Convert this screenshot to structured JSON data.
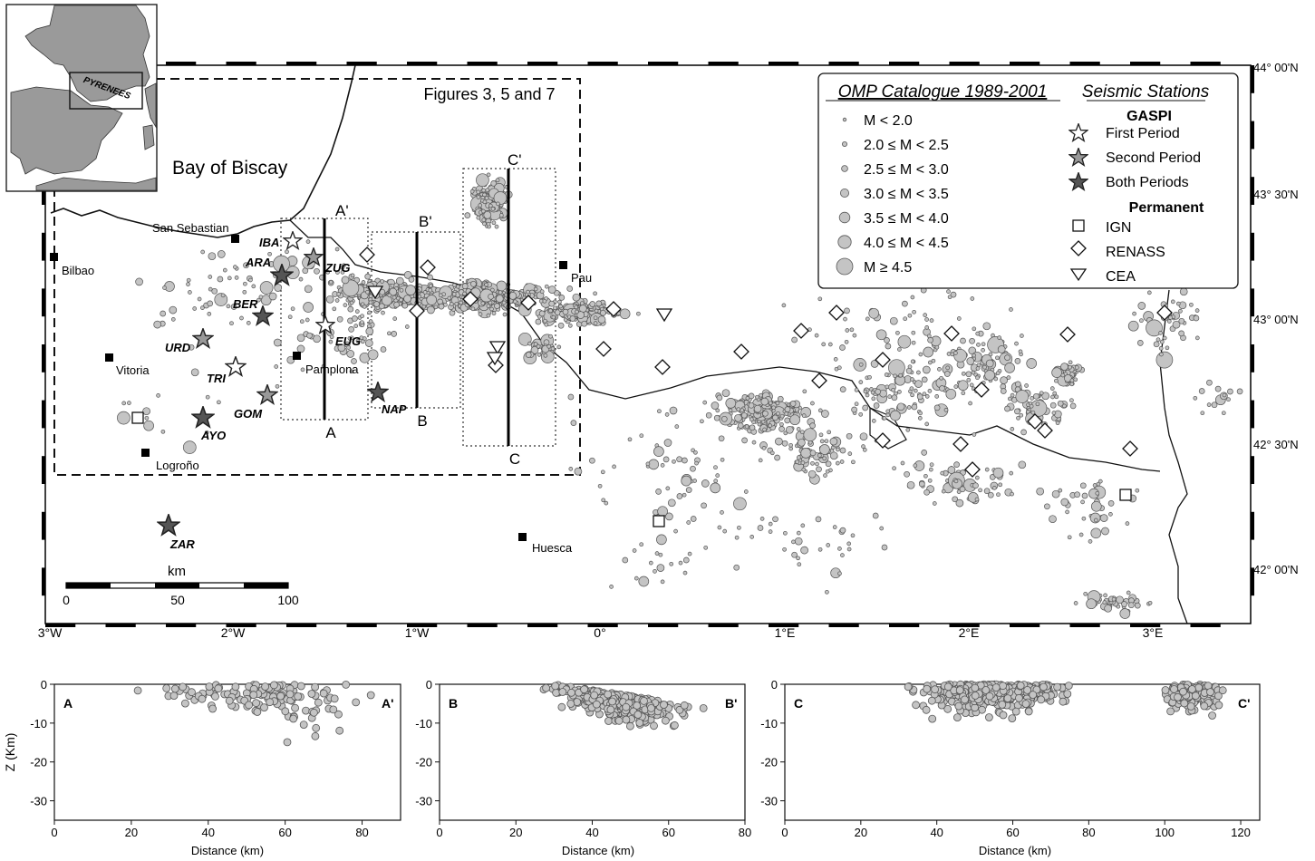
{
  "colors": {
    "event_fill": "#c4c4c4",
    "event_stroke": "#555555",
    "land": "#9a9a9a",
    "sea": "#ffffff",
    "star_dark": "#555555",
    "star_mid": "#999999"
  },
  "map": {
    "lon_labels": [
      "3°W",
      "2°W",
      "1°W",
      "0°",
      "1°E",
      "2°E",
      "3°E"
    ],
    "lat_labels": [
      "44° 00'N",
      "43° 30'N",
      "43° 00'N",
      "42° 30'N",
      "42° 00'N"
    ],
    "inset_label": "PYRENEES",
    "sea_label": "Bay of Biscay",
    "figures_box_label": "Figures 3, 5 and 7",
    "cities": [
      "San Sebastian",
      "Bilbao",
      "Vitoria",
      "Pamplona",
      "Logroño",
      "Pau",
      "Huesca"
    ],
    "profiles": {
      "A": "A",
      "A_prime": "A'",
      "B": "B",
      "B_prime": "B'",
      "C": "C",
      "C_prime": "C'"
    },
    "scale_bar": {
      "unit": "km",
      "ticks": [
        "0",
        "50",
        "100"
      ]
    },
    "stations": {
      "IBA": {
        "label": "IBA",
        "type": "first"
      },
      "ARA": {
        "label": "ARA",
        "type": "both"
      },
      "ZUG": {
        "label": "ZUG",
        "type": "second"
      },
      "BER": {
        "label": "BER",
        "type": "both"
      },
      "EUG": {
        "label": "EUG",
        "type": "first"
      },
      "URD": {
        "label": "URD",
        "type": "second"
      },
      "TRI": {
        "label": "TRI",
        "type": "first"
      },
      "GOM": {
        "label": "GOM",
        "type": "second"
      },
      "NAP": {
        "label": "NAP",
        "type": "both"
      },
      "AYO": {
        "label": "AYO",
        "type": "both"
      },
      "ZAR": {
        "label": "ZAR",
        "type": "both"
      }
    }
  },
  "legend": {
    "catalogue_title": "OMP Catalogue 1989-2001",
    "stations_title": "Seismic Stations",
    "magnitude_classes": [
      "M < 2.0",
      "2.0 ≤ M < 2.5",
      "2.5 ≤ M < 3.0",
      "3.0 ≤ M < 3.5",
      "3.5 ≤ M < 4.0",
      "4.0 ≤ M < 4.5",
      "M ≥ 4.5"
    ],
    "gaspi_heading": "GASPI",
    "gaspi_items": [
      "First Period",
      "Second Period",
      "Both Periods"
    ],
    "permanent_heading": "Permanent",
    "permanent_items": [
      "IGN",
      "RENASS",
      "CEA"
    ]
  },
  "sections": {
    "ylabel": "Z (Km)",
    "xlabel": "Distance (km)",
    "y_ticks": [
      "0",
      "-10",
      "-20",
      "-30"
    ],
    "panels": [
      {
        "start": "A",
        "end": "A'",
        "x_ticks": [
          "0",
          "20",
          "40",
          "60",
          "80"
        ]
      },
      {
        "start": "B",
        "end": "B'",
        "x_ticks": [
          "0",
          "20",
          "40",
          "60",
          "80"
        ]
      },
      {
        "start": "C",
        "end": "C'",
        "x_ticks": [
          "0",
          "20",
          "40",
          "60",
          "80",
          "100",
          "120"
        ]
      }
    ]
  }
}
